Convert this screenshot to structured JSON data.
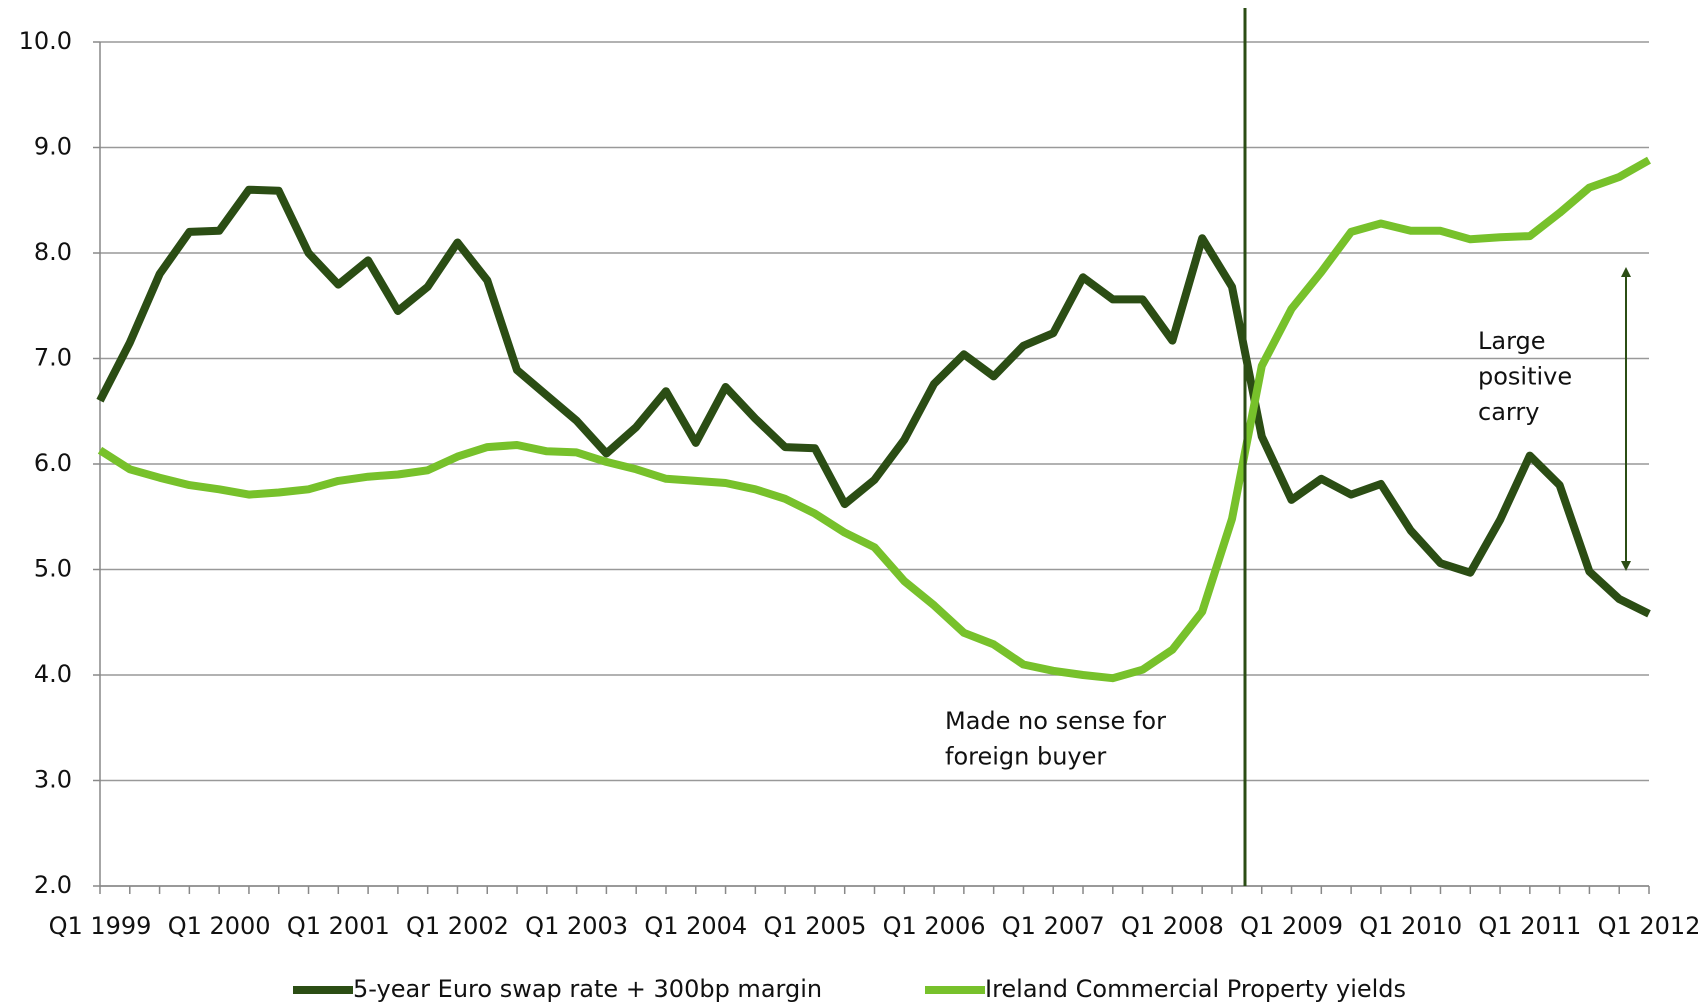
{
  "chart_data": {
    "type": "line",
    "categories": [
      "Q1 1999",
      null,
      null,
      null,
      "Q1 2000",
      null,
      null,
      null,
      "Q1 2001",
      null,
      null,
      null,
      "Q1 2002",
      null,
      null,
      null,
      "Q1 2003",
      null,
      null,
      null,
      "Q1 2004",
      null,
      null,
      null,
      "Q1 2005",
      null,
      null,
      null,
      "Q1 2006",
      null,
      null,
      null,
      "Q1 2007",
      null,
      null,
      null,
      "Q1 2008",
      null,
      null,
      null,
      "Q1 2009",
      null,
      null,
      null,
      "Q1 2010",
      null,
      null,
      null,
      "Q1 2011",
      null,
      null,
      null,
      "Q1 2012"
    ],
    "series": [
      {
        "name": "5-year Euro swap rate + 300bp margin",
        "color": "#2b4d14",
        "values": [
          6.6,
          7.15,
          7.8,
          8.2,
          8.21,
          8.6,
          8.59,
          8.0,
          7.7,
          7.93,
          7.45,
          7.68,
          8.1,
          7.74,
          6.89,
          6.65,
          6.41,
          6.1,
          6.35,
          6.69,
          6.2,
          6.73,
          6.43,
          6.16,
          6.15,
          5.62,
          5.85,
          6.23,
          6.76,
          7.04,
          6.83,
          7.12,
          7.24,
          7.77,
          7.56,
          7.56,
          7.17,
          8.14,
          7.68,
          6.26,
          5.66,
          5.86,
          5.71,
          5.81,
          5.37,
          5.06,
          4.97,
          5.47,
          6.08,
          5.8,
          4.98,
          4.72,
          4.58
        ]
      },
      {
        "name": "Ireland Commercial Property yields",
        "color": "#77c12b",
        "values": [
          6.13,
          5.95,
          5.87,
          5.8,
          5.76,
          5.71,
          5.73,
          5.76,
          5.84,
          5.88,
          5.9,
          5.94,
          6.07,
          6.16,
          6.18,
          6.12,
          6.11,
          6.02,
          5.95,
          5.86,
          5.84,
          5.82,
          5.76,
          5.67,
          5.53,
          5.35,
          5.21,
          4.89,
          4.66,
          4.4,
          4.29,
          4.1,
          4.04,
          4.0,
          3.97,
          4.05,
          4.24,
          4.6,
          5.48,
          6.93,
          7.47,
          7.82,
          8.2,
          8.28,
          8.21,
          8.21,
          8.13,
          8.15,
          8.16,
          8.38,
          8.62,
          8.72,
          8.88
        ]
      }
    ],
    "ylim": [
      2,
      10
    ],
    "yticks": [
      {
        "value": 2,
        "label": "2.0"
      },
      {
        "value": 3,
        "label": "3.0"
      },
      {
        "value": 4,
        "label": "4.0"
      },
      {
        "value": 5,
        "label": "5.0"
      },
      {
        "value": 6,
        "label": "6.0"
      },
      {
        "value": 7,
        "label": "7.0"
      },
      {
        "value": 8,
        "label": "8.0"
      },
      {
        "value": 9,
        "label": "9.0"
      },
      {
        "value": 10,
        "label": "10.0"
      }
    ],
    "grid": true,
    "legend": "bottom",
    "annotations": [
      {
        "text": [
          "Made no sense for",
          "foreign buyer"
        ]
      },
      {
        "text": [
          "Large",
          "positive",
          "carry"
        ]
      }
    ]
  }
}
